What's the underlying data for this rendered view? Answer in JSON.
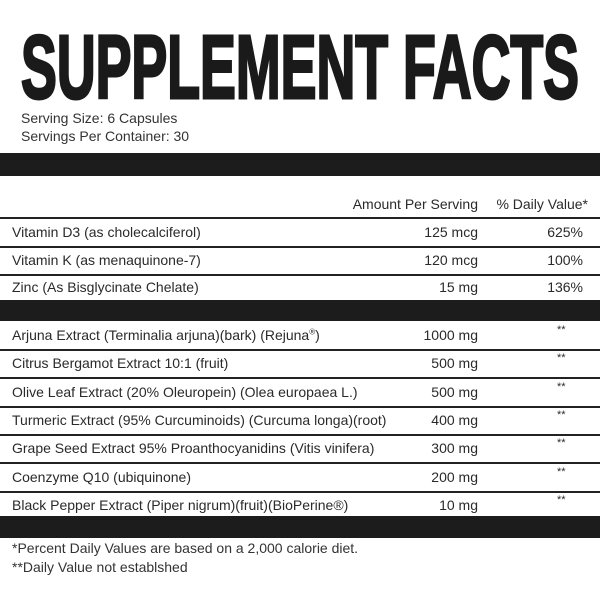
{
  "title": "SUPPLEMENT FACTS",
  "serving_size": "Serving Size: 6 Capsules",
  "servings_per_container": "Servings Per Container: 30",
  "header": {
    "amount": "Amount Per Serving",
    "daily_value": "% Daily Value*"
  },
  "vitamins": [
    {
      "name": "Vitamin D3 (as cholecalciferol)",
      "amount": "125 mcg",
      "dv": "625%"
    },
    {
      "name": "Vitamin K (as menaquinone-7)",
      "amount": "120 mcg",
      "dv": "100%"
    },
    {
      "name": "Zinc (As Bisglycinate Chelate)",
      "amount": "15 mg",
      "dv": "136%"
    }
  ],
  "blend": [
    {
      "name": "Arjuna Extract (Terminalia arjuna)(bark) (Rejuna",
      "sup": "®",
      "suffix": ")",
      "amount": "1000 mg",
      "dv": "**"
    },
    {
      "name": "Citrus Bergamot Extract 10:1 (fruit)",
      "amount": "500 mg",
      "dv": "**"
    },
    {
      "name": "Olive Leaf Extract (20% Oleuropein) (Olea europaea L.)",
      "amount": "500 mg",
      "dv": "**"
    },
    {
      "name": "Turmeric Extract (95% Curcuminoids) (Curcuma longa)(root)",
      "amount": "400 mg",
      "dv": "**"
    },
    {
      "name": "Grape Seed Extract 95% Proanthocyanidins (Vitis vinifera)",
      "amount": "300 mg",
      "dv": "**"
    },
    {
      "name": "Coenzyme Q10 (ubiquinone)",
      "amount": "200 mg",
      "dv": "**"
    },
    {
      "name": "Black Pepper Extract (Piper nigrum)(fruit)(BioPerine®)",
      "amount": "10 mg",
      "dv": "**"
    }
  ],
  "footnotes": [
    "*Percent Daily Values are based on a 2,000 calorie diet.",
    "**Daily Value not establshed"
  ]
}
